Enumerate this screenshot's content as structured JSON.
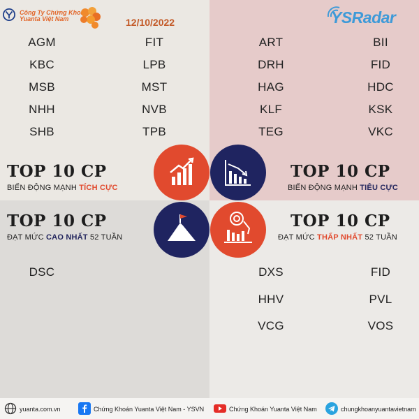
{
  "header": {
    "brand_line1": "Công Ty Chứng Khoán",
    "brand_line2": "Yuanta Việt Nam",
    "date": "12/10/2022",
    "radar_logo": "YSRadar"
  },
  "positive": {
    "title": "TOP 10 CP",
    "subtitle_prefix": "BIẾN ĐỘNG MẠNH",
    "subtitle_highlight": "TÍCH CỰC",
    "col1": [
      "AGM",
      "KBC",
      "MSB",
      "NHH",
      "SHB"
    ],
    "col2": [
      "FIT",
      "LPB",
      "MST",
      "NVB",
      "TPB"
    ]
  },
  "negative": {
    "title": "TOP 10 CP",
    "subtitle_prefix": "BIẾN ĐỘNG MẠNH",
    "subtitle_highlight": "TIÊU CỰC",
    "col1": [
      "ART",
      "DRH",
      "HAG",
      "KLF",
      "TEG"
    ],
    "col2": [
      "BII",
      "FID",
      "HDC",
      "KSK",
      "VKC"
    ]
  },
  "high52": {
    "title": "TOP 10 CP",
    "subtitle_prefix": "ĐẠT MỨC",
    "subtitle_highlight": "CAO NHẤT",
    "subtitle_suffix": "52 TUẦN",
    "col1": [
      "DSC"
    ]
  },
  "low52": {
    "title": "TOP 10 CP",
    "subtitle_prefix": "ĐẠT MỨC",
    "subtitle_highlight": "THẤP NHẤT",
    "subtitle_suffix": "52 TUẦN",
    "col1": [
      "DXS",
      "HHV",
      "VCG"
    ],
    "col2": [
      "FID",
      "PVL",
      "VOS"
    ]
  },
  "footer": {
    "website": "yuanta.com.vn",
    "facebook": "Chứng Khoán Yuanta Việt Nam - YSVN",
    "youtube": "Chứng Khoán Yuanta Việt Nam",
    "telegram": "chungkhoanyuantavietnam"
  },
  "colors": {
    "accent_red": "#e14a2e",
    "accent_navy": "#1f2460",
    "date_color": "#c35a28",
    "radar_blue": "#3e9ad8"
  },
  "icons": [
    "yuanta-logo-icon",
    "flower-icon",
    "growth-chart-icon",
    "decline-chart-icon",
    "mountain-flag-icon",
    "target-down-chart-icon",
    "globe-icon",
    "facebook-icon",
    "youtube-icon",
    "telegram-icon"
  ]
}
